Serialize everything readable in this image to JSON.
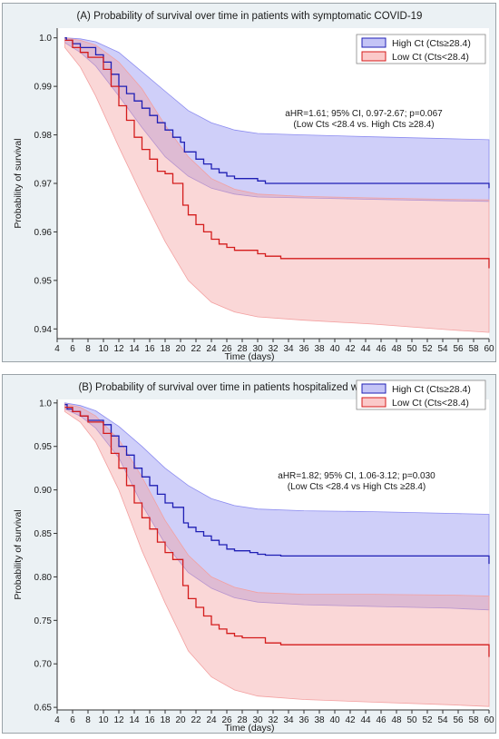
{
  "chart_data": [
    {
      "type": "line",
      "title": "(A) Probability of survival over time in patients with symptomatic COVID-19",
      "xlabel": "Time (days)",
      "ylabel": "Probability of survival",
      "xlim": [
        4,
        60
      ],
      "ylim": [
        0.938,
        1.002
      ],
      "xticks": [
        "4",
        "6",
        "8",
        "10",
        "12",
        "14",
        "16",
        "18",
        "20",
        "22",
        "24",
        "26",
        "28",
        "30",
        "32",
        "34",
        "36",
        "38",
        "40",
        "42",
        "44",
        "46",
        "48",
        "50",
        "52",
        "54",
        "56",
        "58",
        "60"
      ],
      "yticks": [
        "0.94",
        "0.95",
        "0.96",
        "0.97",
        "0.98",
        "0.99",
        "1.0"
      ],
      "legend": {
        "placement": "top-right",
        "entries": [
          "High Ct (Cts≥28.4)",
          "Low Ct (Cts<28.4)"
        ]
      },
      "annotation": [
        "aHR=1.61; 95% CI, 0.97-2.67; p=0.067",
        "(Low Cts <28.4 vs. High Cts ≥28.4)"
      ],
      "series": [
        {
          "label": "High Ct (Cts≥28.4)",
          "color": "#1f1fb4",
          "band_color": "#8c8cf0",
          "steps": [
            [
              5,
              1.0
            ],
            [
              5.2,
              0.9995
            ],
            [
              6,
              0.9988
            ],
            [
              7,
              0.998
            ],
            [
              9,
              0.9965
            ],
            [
              10,
              0.995
            ],
            [
              11,
              0.9925
            ],
            [
              12,
              0.99
            ],
            [
              13,
              0.9885
            ],
            [
              14,
              0.987
            ],
            [
              15,
              0.9855
            ],
            [
              16,
              0.984
            ],
            [
              17,
              0.9825
            ],
            [
              18,
              0.981
            ],
            [
              19,
              0.9795
            ],
            [
              20,
              0.9785
            ],
            [
              20.5,
              0.9765
            ],
            [
              22,
              0.975
            ],
            [
              23,
              0.974
            ],
            [
              24,
              0.973
            ],
            [
              25,
              0.9722
            ],
            [
              26,
              0.9715
            ],
            [
              27,
              0.971
            ],
            [
              30,
              0.9705
            ],
            [
              31,
              0.97
            ],
            [
              60,
              0.97
            ],
            [
              60,
              0.969
            ]
          ],
          "band_upper": [
            [
              5,
              1.0
            ],
            [
              7,
              0.9998
            ],
            [
              9,
              0.9992
            ],
            [
              12,
              0.997
            ],
            [
              15,
              0.993
            ],
            [
              18,
              0.989
            ],
            [
              21,
              0.985
            ],
            [
              24,
              0.9825
            ],
            [
              27,
              0.981
            ],
            [
              30,
              0.9803
            ],
            [
              36,
              0.98
            ],
            [
              45,
              0.9796
            ],
            [
              55,
              0.9792
            ],
            [
              60,
              0.979
            ]
          ],
          "band_lower": [
            [
              5,
              0.999
            ],
            [
              7,
              0.997
            ],
            [
              9,
              0.9942
            ],
            [
              12,
              0.988
            ],
            [
              15,
              0.9815
            ],
            [
              18,
              0.9755
            ],
            [
              21,
              0.9715
            ],
            [
              24,
              0.969
            ],
            [
              27,
              0.9678
            ],
            [
              30,
              0.9672
            ],
            [
              36,
              0.967
            ],
            [
              45,
              0.9667
            ],
            [
              55,
              0.9664
            ],
            [
              60,
              0.9663
            ]
          ]
        },
        {
          "label": "Low Ct (Cts<28.4)",
          "color": "#d41c1c",
          "band_color": "#f3a0a0",
          "steps": [
            [
              5,
              0.9995
            ],
            [
              6,
              0.998
            ],
            [
              7,
              0.997
            ],
            [
              8,
              0.996
            ],
            [
              10,
              0.9935
            ],
            [
              11,
              0.99
            ],
            [
              12,
              0.986
            ],
            [
              13,
              0.983
            ],
            [
              14,
              0.9795
            ],
            [
              15,
              0.977
            ],
            [
              16,
              0.975
            ],
            [
              17,
              0.9725
            ],
            [
              18,
              0.972
            ],
            [
              19,
              0.97
            ],
            [
              20,
              0.97
            ],
            [
              20.3,
              0.9655
            ],
            [
              21,
              0.9635
            ],
            [
              22,
              0.9615
            ],
            [
              23,
              0.96
            ],
            [
              24,
              0.9585
            ],
            [
              25,
              0.9575
            ],
            [
              26,
              0.9568
            ],
            [
              27,
              0.9562
            ],
            [
              30,
              0.9555
            ],
            [
              31,
              0.955
            ],
            [
              33,
              0.9545
            ],
            [
              60,
              0.9545
            ],
            [
              60,
              0.9525
            ]
          ],
          "band_upper": [
            [
              5,
              1.0
            ],
            [
              7,
              0.9995
            ],
            [
              9,
              0.9985
            ],
            [
              12,
              0.995
            ],
            [
              15,
              0.9895
            ],
            [
              18,
              0.982
            ],
            [
              21,
              0.9755
            ],
            [
              24,
              0.971
            ],
            [
              27,
              0.9688
            ],
            [
              30,
              0.9678
            ],
            [
              36,
              0.9673
            ],
            [
              45,
              0.967
            ],
            [
              55,
              0.9667
            ],
            [
              60,
              0.9666
            ]
          ],
          "band_lower": [
            [
              5,
              0.998
            ],
            [
              7,
              0.994
            ],
            [
              9,
              0.988
            ],
            [
              12,
              0.9775
            ],
            [
              15,
              0.9675
            ],
            [
              18,
              0.958
            ],
            [
              21,
              0.95
            ],
            [
              24,
              0.9455
            ],
            [
              27,
              0.9435
            ],
            [
              30,
              0.9425
            ],
            [
              36,
              0.9418
            ],
            [
              45,
              0.941
            ],
            [
              55,
              0.9398
            ],
            [
              60,
              0.9393
            ]
          ]
        }
      ]
    },
    {
      "type": "line",
      "title": "(B) Probability of survival over time in patients hospitalized with COVID-19",
      "xlabel": "Time (days)",
      "ylabel": "Probability of survival",
      "xlim": [
        4,
        60
      ],
      "ylim": [
        0.647,
        1.004
      ],
      "xticks": [
        "4",
        "6",
        "8",
        "10",
        "12",
        "14",
        "16",
        "18",
        "20",
        "22",
        "24",
        "26",
        "28",
        "30",
        "32",
        "34",
        "36",
        "38",
        "40",
        "42",
        "44",
        "46",
        "48",
        "50",
        "52",
        "54",
        "56",
        "58",
        "60"
      ],
      "yticks": [
        "0.65",
        "0.70",
        "0.75",
        "0.80",
        "0.85",
        "0.90",
        "0.95",
        "1.0"
      ],
      "legend": {
        "placement": "top-right",
        "entries": [
          "High Ct (Cts≥28.4)",
          "Low Ct (Cts<28.4)"
        ]
      },
      "annotation": [
        "aHR=1.82; 95% CI, 1.06-3.12; p=0.030",
        "(Low Cts <28.4 vs High Cts ≥28.4)"
      ],
      "series": [
        {
          "label": "High Ct (Cts≥28.4)",
          "color": "#1f1fb4",
          "band_color": "#8c8cf0",
          "steps": [
            [
              5,
              0.998
            ],
            [
              5.3,
              0.993
            ],
            [
              6,
              0.99
            ],
            [
              7,
              0.985
            ],
            [
              8,
              0.98
            ],
            [
              10,
              0.975
            ],
            [
              11,
              0.962
            ],
            [
              12,
              0.95
            ],
            [
              13,
              0.94
            ],
            [
              14,
              0.925
            ],
            [
              15,
              0.915
            ],
            [
              16,
              0.905
            ],
            [
              17,
              0.895
            ],
            [
              18,
              0.885
            ],
            [
              19,
              0.88
            ],
            [
              20,
              0.88
            ],
            [
              20.4,
              0.862
            ],
            [
              21,
              0.857
            ],
            [
              22,
              0.852
            ],
            [
              23,
              0.847
            ],
            [
              24,
              0.842
            ],
            [
              25,
              0.837
            ],
            [
              26,
              0.832
            ],
            [
              27,
              0.83
            ],
            [
              29,
              0.828
            ],
            [
              30,
              0.826
            ],
            [
              31,
              0.825
            ],
            [
              33,
              0.824
            ],
            [
              60,
              0.824
            ],
            [
              60,
              0.815
            ]
          ],
          "band_upper": [
            [
              5,
              1.0
            ],
            [
              7,
              0.997
            ],
            [
              9,
              0.991
            ],
            [
              12,
              0.973
            ],
            [
              15,
              0.95
            ],
            [
              18,
              0.925
            ],
            [
              21,
              0.905
            ],
            [
              24,
              0.89
            ],
            [
              27,
              0.882
            ],
            [
              30,
              0.878
            ],
            [
              36,
              0.876
            ],
            [
              45,
              0.875
            ],
            [
              55,
              0.873
            ],
            [
              60,
              0.872
            ]
          ],
          "band_lower": [
            [
              5,
              0.993
            ],
            [
              7,
              0.985
            ],
            [
              9,
              0.971
            ],
            [
              12,
              0.937
            ],
            [
              15,
              0.883
            ],
            [
              18,
              0.838
            ],
            [
              21,
              0.805
            ],
            [
              24,
              0.787
            ],
            [
              27,
              0.776
            ],
            [
              30,
              0.771
            ],
            [
              36,
              0.768
            ],
            [
              45,
              0.766
            ],
            [
              55,
              0.764
            ],
            [
              60,
              0.762
            ]
          ]
        },
        {
          "label": "Low Ct (Cts<28.4)",
          "color": "#d41c1c",
          "band_color": "#f3a0a0",
          "steps": [
            [
              5,
              0.995
            ],
            [
              6,
              0.99
            ],
            [
              7,
              0.985
            ],
            [
              8,
              0.978
            ],
            [
              10,
              0.965
            ],
            [
              11,
              0.942
            ],
            [
              12,
              0.925
            ],
            [
              13,
              0.905
            ],
            [
              14,
              0.885
            ],
            [
              15,
              0.868
            ],
            [
              16,
              0.855
            ],
            [
              17,
              0.84
            ],
            [
              18,
              0.828
            ],
            [
              19,
              0.82
            ],
            [
              20,
              0.82
            ],
            [
              20.3,
              0.79
            ],
            [
              21,
              0.775
            ],
            [
              22,
              0.765
            ],
            [
              23,
              0.755
            ],
            [
              24,
              0.745
            ],
            [
              25,
              0.74
            ],
            [
              26,
              0.735
            ],
            [
              27,
              0.732
            ],
            [
              28,
              0.73
            ],
            [
              31,
              0.724
            ],
            [
              33,
              0.722
            ],
            [
              60,
              0.722
            ],
            [
              60,
              0.708
            ]
          ],
          "band_upper": [
            [
              5,
              0.999
            ],
            [
              7,
              0.995
            ],
            [
              9,
              0.985
            ],
            [
              12,
              0.958
            ],
            [
              15,
              0.915
            ],
            [
              18,
              0.865
            ],
            [
              21,
              0.825
            ],
            [
              24,
              0.8
            ],
            [
              27,
              0.788
            ],
            [
              30,
              0.782
            ],
            [
              36,
              0.78
            ],
            [
              45,
              0.78
            ],
            [
              55,
              0.779
            ],
            [
              60,
              0.778
            ]
          ],
          "band_lower": [
            [
              5,
              0.99
            ],
            [
              7,
              0.978
            ],
            [
              9,
              0.955
            ],
            [
              12,
              0.9
            ],
            [
              15,
              0.83
            ],
            [
              18,
              0.77
            ],
            [
              21,
              0.715
            ],
            [
              24,
              0.685
            ],
            [
              27,
              0.67
            ],
            [
              30,
              0.663
            ],
            [
              36,
              0.659
            ],
            [
              45,
              0.656
            ],
            [
              55,
              0.653
            ],
            [
              60,
              0.651
            ]
          ]
        }
      ]
    }
  ]
}
